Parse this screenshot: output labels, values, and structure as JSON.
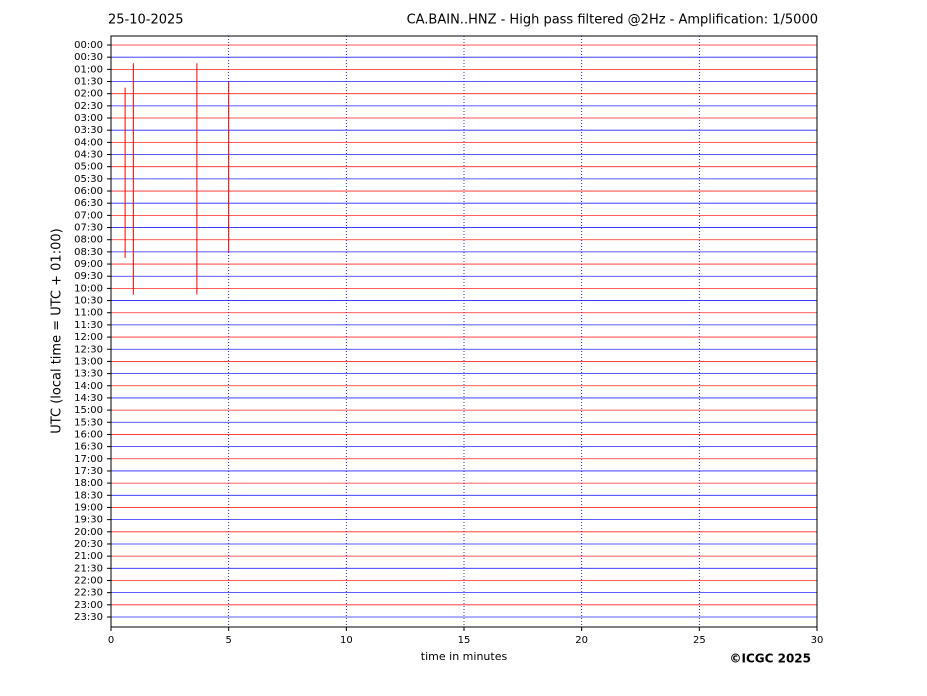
{
  "chart_data": {
    "type": "helicorder",
    "title_left": "25-10-2025",
    "title": "CA.BAIN..HNZ - High pass filtered @2Hz - Amplification: 1/5000",
    "x_label": "time in minutes",
    "y_label": "UTC (local time = UTC + 01:00)",
    "footer": "©ICGC 2025",
    "categories": [
      "00:00",
      "00:30",
      "01:00",
      "01:30",
      "02:00",
      "02:30",
      "03:00",
      "03:30",
      "04:00",
      "04:30",
      "05:00",
      "05:30",
      "06:00",
      "06:30",
      "07:00",
      "07:30",
      "08:00",
      "08:30",
      "09:00",
      "09:30",
      "10:00",
      "10:30",
      "11:00",
      "11:30",
      "12:00",
      "12:30",
      "13:00",
      "13:30",
      "14:00",
      "14:30",
      "15:00",
      "15:30",
      "16:00",
      "16:30",
      "17:00",
      "17:30",
      "18:00",
      "18:30",
      "19:00",
      "19:30",
      "20:00",
      "20:30",
      "21:00",
      "21:30",
      "22:00",
      "22:30",
      "23:00",
      "23:30"
    ],
    "trace_colors": [
      "#ff0000",
      "#0000ff"
    ],
    "xlim": [
      0,
      30
    ],
    "xticks": [
      0,
      5,
      10,
      15,
      20,
      25,
      30
    ],
    "grid": true,
    "events": [
      {
        "x": 0.6,
        "from": 3.5,
        "to": 17.5
      },
      {
        "x": 0.95,
        "from": 1.5,
        "to": 20.5
      },
      {
        "x": 3.65,
        "from": 1.5,
        "to": 20.5
      },
      {
        "x": 5.0,
        "from": 3.0,
        "to": 17.0
      }
    ]
  }
}
